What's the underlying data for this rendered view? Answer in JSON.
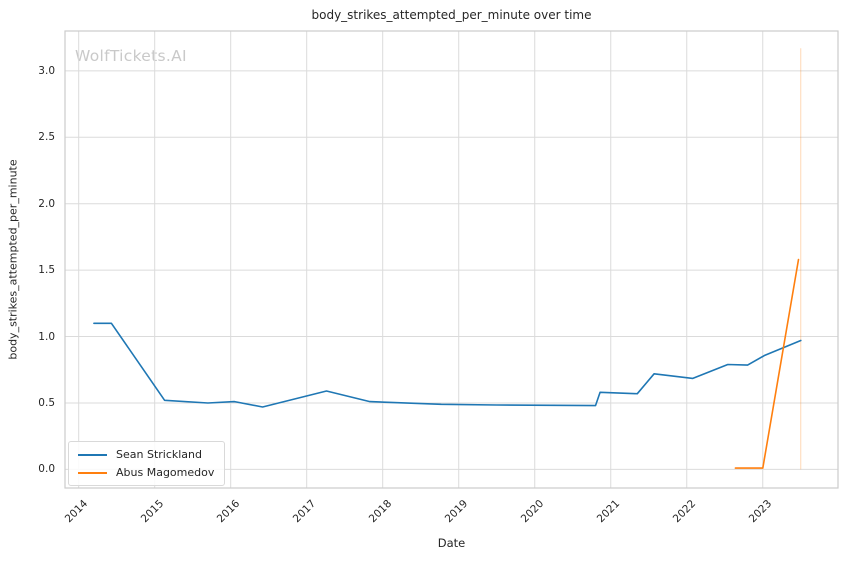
{
  "watermark": "WolfTickets.AI",
  "colors": {
    "background": "#ffffff",
    "grid": "#dbdbdb",
    "spine": "#cccccc",
    "text": "#262626",
    "watermark": "#c9c9c9",
    "series_blue": "#1f77b4",
    "series_orange": "#ff7f0e"
  },
  "chart_data": {
    "type": "line",
    "title": "body_strikes_attempted_per_minute over time",
    "xlabel": "Date",
    "ylabel": "body_strikes_attempted_per_minute",
    "xlim": [
      2013.82,
      2023.99
    ],
    "ylim": [
      -0.14,
      3.3
    ],
    "grid": true,
    "legend_position": "lower-left",
    "x_ticks": [
      {
        "v": 2014,
        "label": "2014"
      },
      {
        "v": 2015,
        "label": "2015"
      },
      {
        "v": 2016,
        "label": "2016"
      },
      {
        "v": 2017,
        "label": "2017"
      },
      {
        "v": 2018,
        "label": "2018"
      },
      {
        "v": 2019,
        "label": "2019"
      },
      {
        "v": 2020,
        "label": "2020"
      },
      {
        "v": 2021,
        "label": "2021"
      },
      {
        "v": 2022,
        "label": "2022"
      },
      {
        "v": 2023,
        "label": "2023"
      }
    ],
    "y_ticks": [
      {
        "v": 0.0,
        "label": "0.0"
      },
      {
        "v": 0.5,
        "label": "0.5"
      },
      {
        "v": 1.0,
        "label": "1.0"
      },
      {
        "v": 1.5,
        "label": "1.5"
      },
      {
        "v": 2.0,
        "label": "2.0"
      },
      {
        "v": 2.5,
        "label": "2.5"
      },
      {
        "v": 3.0,
        "label": "3.0"
      }
    ],
    "series": [
      {
        "name": "Sean Strickland",
        "color": "#1f77b4",
        "points": [
          [
            2014.2,
            1.1
          ],
          [
            2014.43,
            1.1
          ],
          [
            2015.13,
            0.52
          ],
          [
            2015.7,
            0.5
          ],
          [
            2016.05,
            0.51
          ],
          [
            2016.42,
            0.47
          ],
          [
            2017.26,
            0.59
          ],
          [
            2017.83,
            0.51
          ],
          [
            2018.77,
            0.49
          ],
          [
            2019.5,
            0.485
          ],
          [
            2020.8,
            0.48
          ],
          [
            2020.86,
            0.58
          ],
          [
            2021.35,
            0.57
          ],
          [
            2021.57,
            0.72
          ],
          [
            2022.08,
            0.685
          ],
          [
            2022.54,
            0.79
          ],
          [
            2022.8,
            0.785
          ],
          [
            2023.03,
            0.86
          ],
          [
            2023.5,
            0.97
          ]
        ]
      },
      {
        "name": "Abus Magomedov",
        "color": "#ff7f0e",
        "points": [
          [
            2022.64,
            0.01
          ],
          [
            2023.0,
            0.01
          ],
          [
            2023.47,
            1.58
          ]
        ]
      }
    ],
    "event_line": {
      "x": 2023.5,
      "y0": 0.0,
      "y1": 3.17,
      "color": "#ff7f0e",
      "opacity": 0.3
    }
  }
}
